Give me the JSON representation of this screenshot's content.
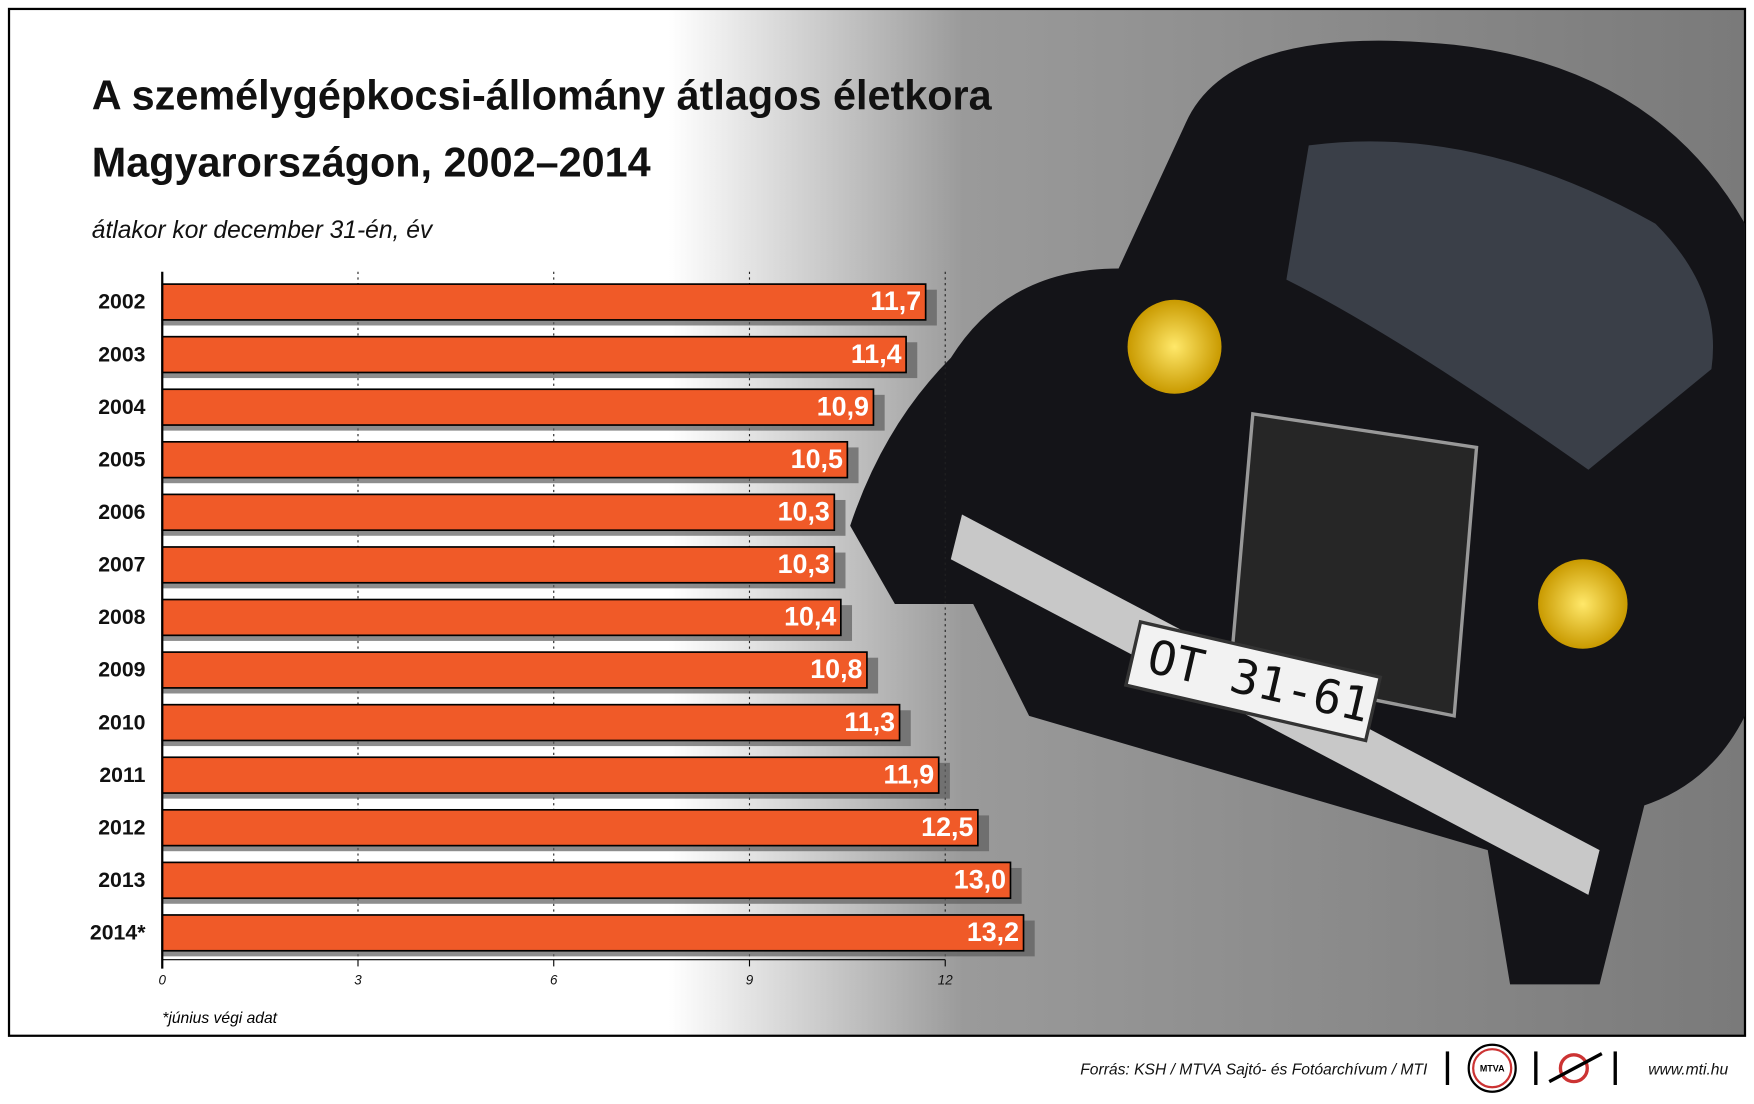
{
  "chart_data": {
    "type": "bar",
    "orientation": "horizontal",
    "title": [
      "A személygépkocsi-állomány átlagos életkora",
      "Magyarországon, 2002–2014"
    ],
    "subtitle": "átlakor kor december 31-én, év",
    "categories": [
      "2002",
      "2003",
      "2004",
      "2005",
      "2006",
      "2007",
      "2008",
      "2009",
      "2010",
      "2011",
      "2012",
      "2013",
      "2014*"
    ],
    "values": [
      11.7,
      11.4,
      10.9,
      10.5,
      10.3,
      10.3,
      10.4,
      10.8,
      11.3,
      11.9,
      12.5,
      13.0,
      13.2
    ],
    "value_labels": [
      "11,7",
      "11,4",
      "10,9",
      "10,5",
      "10,3",
      "10,3",
      "10,4",
      "10,8",
      "11,3",
      "11,9",
      "12,5",
      "13,0",
      "13,2"
    ],
    "color": "#f05a28",
    "xlim": [
      0,
      12
    ],
    "xticks": [
      0,
      3,
      6,
      9,
      12
    ],
    "grid": true,
    "footnote": "*június végi adat",
    "source": "Forrás: KSH / MTVA Sajtó- és Fotóarchívum / MTI",
    "logo": "MTVA",
    "website": "www.mti.hu"
  }
}
